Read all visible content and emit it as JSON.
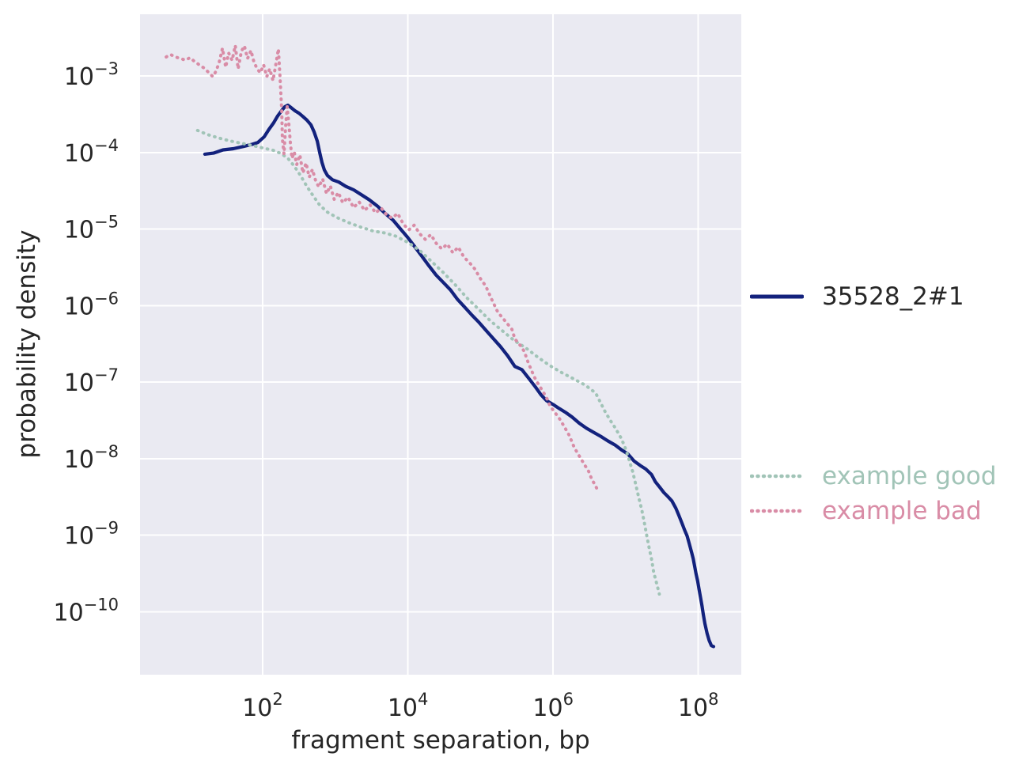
{
  "figure": {
    "background": "#ffffff",
    "plot_background": "#eaeaf2",
    "grid_color": "#ffffff",
    "text_color": "#262626"
  },
  "chart_data": {
    "type": "line",
    "xscale": "log",
    "yscale": "log",
    "xlabel": "fragment separation, bp",
    "ylabel": "probability density",
    "xlim": [
      2.05,
      390000000
    ],
    "ylim": [
      1.5e-11,
      0.0064
    ],
    "grid": true,
    "legend_position": "right of axes",
    "xtick_exponents": [
      2,
      4,
      6,
      8
    ],
    "ytick_exponents": [
      -3,
      -4,
      -5,
      -6,
      -7,
      -8,
      -9,
      -10
    ],
    "series": [
      {
        "name": "35528_2#1",
        "color": "#13227d",
        "label_color": "#262626",
        "line_style": "solid",
        "line_width": 4.2,
        "points": [
          [
            16,
            9.5e-05
          ],
          [
            21,
            9.8e-05
          ],
          [
            28.5,
            0.000108
          ],
          [
            39.5,
            0.000112
          ],
          [
            55,
            0.00012
          ],
          [
            70,
            0.000127
          ],
          [
            86,
            0.000135
          ],
          [
            105,
            0.00016
          ],
          [
            122,
            0.0002
          ],
          [
            142,
            0.000245
          ],
          [
            161,
            0.0003
          ],
          [
            182,
            0.00035
          ],
          [
            202,
            0.000395
          ],
          [
            223,
            0.000415
          ],
          [
            247,
            0.000385
          ],
          [
            280,
            0.00035
          ],
          [
            317,
            0.000325
          ],
          [
            359,
            0.000295
          ],
          [
            407,
            0.000265
          ],
          [
            462,
            0.00023
          ],
          [
            512,
            0.000185
          ],
          [
            567,
            0.00014
          ],
          [
            610,
            0.0001
          ],
          [
            657,
            7.4e-05
          ],
          [
            708,
            5.9e-05
          ],
          [
            781,
            5e-05
          ],
          [
            916,
            4.4e-05
          ],
          [
            1120,
            4.1e-05
          ],
          [
            1400,
            3.6e-05
          ],
          [
            1790,
            3.25e-05
          ],
          [
            2290,
            2.8e-05
          ],
          [
            2950,
            2.4e-05
          ],
          [
            3790,
            2e-05
          ],
          [
            4870,
            1.6e-05
          ],
          [
            6270,
            1.3e-05
          ],
          [
            8070,
            9.8e-06
          ],
          [
            9900,
            7.8e-06
          ],
          [
            12400,
            5.9e-06
          ],
          [
            15600,
            4.4e-06
          ],
          [
            19500,
            3.3e-06
          ],
          [
            24500,
            2.5e-06
          ],
          [
            30700,
            2e-06
          ],
          [
            38600,
            1.6e-06
          ],
          [
            48400,
            1.2e-06
          ],
          [
            60700,
            9.5e-07
          ],
          [
            76200,
            7.5e-07
          ],
          [
            95600,
            6e-07
          ],
          [
            120000,
            4.7e-07
          ],
          [
            150000,
            3.7e-07
          ],
          [
            189000,
            2.9e-07
          ],
          [
            237000,
            2.2e-07
          ],
          [
            297000,
            1.6e-07
          ],
          [
            373000,
            1.45e-07
          ],
          [
            468000,
            1.1e-07
          ],
          [
            572000,
            8.6e-08
          ],
          [
            682000,
            6.8e-08
          ],
          [
            813000,
            5.7e-08
          ],
          [
            995000,
            5.1e-08
          ],
          [
            1220000,
            4.5e-08
          ],
          [
            1490000,
            4e-08
          ],
          [
            1820000,
            3.5e-08
          ],
          [
            2290000,
            2.9e-08
          ],
          [
            2870000,
            2.5e-08
          ],
          [
            3610000,
            2.2e-08
          ],
          [
            4530000,
            1.95e-08
          ],
          [
            5690000,
            1.7e-08
          ],
          [
            7150000,
            1.5e-08
          ],
          [
            8730000,
            1.3e-08
          ],
          [
            10700000,
            1.15e-08
          ],
          [
            13000000,
            9.3e-09
          ],
          [
            15900000,
            8.1e-09
          ],
          [
            18900000,
            7.3e-09
          ],
          [
            22600000,
            6.2e-09
          ],
          [
            25500000,
            5e-09
          ],
          [
            29500000,
            4.2e-09
          ],
          [
            33500000,
            3.6e-09
          ],
          [
            37900000,
            3.2e-09
          ],
          [
            43200000,
            2.8e-09
          ],
          [
            49000000,
            2.25e-09
          ],
          [
            54000000,
            1.8e-09
          ],
          [
            60000000,
            1.4e-09
          ],
          [
            65000000,
            1.15e-09
          ],
          [
            70000000,
            9.8e-10
          ],
          [
            75000000,
            7.7e-10
          ],
          [
            81000000,
            5.9e-10
          ],
          [
            85000000,
            4.9e-10
          ],
          [
            89000000,
            3.9e-10
          ],
          [
            93000000,
            3.1e-10
          ],
          [
            98000000,
            2.5e-10
          ],
          [
            102000000,
            2e-10
          ],
          [
            107000000,
            1.55e-10
          ],
          [
            112000000,
            1.2e-10
          ],
          [
            117000000,
            9.2e-11
          ],
          [
            123000000,
            7e-11
          ],
          [
            132000000,
            5.2e-11
          ],
          [
            141000000,
            4.2e-11
          ],
          [
            151000000,
            3.6e-11
          ],
          [
            162000000,
            3.5e-11
          ]
        ]
      },
      {
        "name": "example good",
        "color": "#a1c4b7",
        "label_color": "#a1c4b7",
        "line_style": "dotted",
        "line_width": 4,
        "points": [
          [
            12.7,
            0.000194
          ],
          [
            17.3,
            0.000172
          ],
          [
            24,
            0.000156
          ],
          [
            35,
            0.000142
          ],
          [
            51,
            0.000132
          ],
          [
            74,
            0.000123
          ],
          [
            103,
            0.000114
          ],
          [
            139,
            0.000107
          ],
          [
            178,
            9.7e-05
          ],
          [
            223,
            8.4e-05
          ],
          [
            273,
            6.6e-05
          ],
          [
            333,
            5e-05
          ],
          [
            407,
            3.6e-05
          ],
          [
            498,
            2.7e-05
          ],
          [
            610,
            2.05e-05
          ],
          [
            781,
            1.66e-05
          ],
          [
            1060,
            1.41e-05
          ],
          [
            1500,
            1.22e-05
          ],
          [
            2240,
            1.06e-05
          ],
          [
            3340,
            9.4e-06
          ],
          [
            4740,
            8.9e-06
          ],
          [
            6760,
            8.1e-06
          ],
          [
            9900,
            6.7e-06
          ],
          [
            14400,
            5.3e-06
          ],
          [
            21000,
            3.8e-06
          ],
          [
            30700,
            2.7e-06
          ],
          [
            44900,
            1.87e-06
          ],
          [
            65500,
            1.25e-06
          ],
          [
            95600,
            8.8e-07
          ],
          [
            137000,
            6.3e-07
          ],
          [
            199000,
            4.7e-07
          ],
          [
            290000,
            3.5e-07
          ],
          [
            420000,
            2.8e-07
          ],
          [
            620000,
            2.1e-07
          ],
          [
            900000,
            1.64e-07
          ],
          [
            1310000,
            1.33e-07
          ],
          [
            1920000,
            1.1e-07
          ],
          [
            2780000,
            9.1e-08
          ],
          [
            3850000,
            7.2e-08
          ],
          [
            5200000,
            4.1e-08
          ],
          [
            6200000,
            3.1e-08
          ],
          [
            7200000,
            2.5e-08
          ],
          [
            8600000,
            1.87e-08
          ],
          [
            9700000,
            1.44e-08
          ],
          [
            10900000,
            1.03e-08
          ],
          [
            12500000,
            6.7e-09
          ],
          [
            13800000,
            4.5e-09
          ],
          [
            15100000,
            3.1e-09
          ],
          [
            16700000,
            2.1e-09
          ],
          [
            18100000,
            1.43e-09
          ],
          [
            19400000,
            1e-09
          ],
          [
            20900000,
            7e-10
          ],
          [
            22600000,
            4.9e-10
          ],
          [
            24200000,
            3.3e-10
          ],
          [
            26800000,
            2.3e-10
          ],
          [
            29000000,
            1.7e-10
          ]
        ]
      },
      {
        "name": "example bad",
        "color": "#d98ca6",
        "label_color": "#d98ca6",
        "line_style": "dotted",
        "line_width": 4,
        "points": [
          [
            4.7,
            0.00177
          ],
          [
            5.4,
            0.0019
          ],
          [
            6.3,
            0.00177
          ],
          [
            7.4,
            0.00169
          ],
          [
            8.6,
            0.00161
          ],
          [
            10,
            0.00173
          ],
          [
            11.6,
            0.00154
          ],
          [
            13.4,
            0.0014
          ],
          [
            15.6,
            0.00127
          ],
          [
            18.2,
            0.0011
          ],
          [
            20.6,
            0.00098
          ],
          [
            22.8,
            0.00115
          ],
          [
            25.2,
            0.0015
          ],
          [
            28,
            0.0023
          ],
          [
            31,
            0.0013
          ],
          [
            34,
            0.002
          ],
          [
            38,
            0.0016
          ],
          [
            42,
            0.0025
          ],
          [
            46,
            0.00124
          ],
          [
            51,
            0.00209
          ],
          [
            56,
            0.00247
          ],
          [
            62,
            0.00169
          ],
          [
            69,
            0.00215
          ],
          [
            76,
            0.00152
          ],
          [
            84,
            0.00124
          ],
          [
            93,
            0.0011
          ],
          [
            103,
            0.0014
          ],
          [
            114,
            0.00098
          ],
          [
            125,
            0.00124
          ],
          [
            139,
            0.00087
          ],
          [
            153,
            0.00146
          ],
          [
            165,
            0.00225
          ],
          [
            174,
            0.00091
          ],
          [
            183,
            0.00035
          ],
          [
            187,
            0.000152
          ],
          [
            197,
            9.5e-05
          ],
          [
            207,
            0.000218
          ],
          [
            218,
            0.000395
          ],
          [
            229,
            0.000245
          ],
          [
            241,
            0.000135
          ],
          [
            253,
            8.4e-05
          ],
          [
            273,
            0.000101
          ],
          [
            294,
            6.9e-05
          ],
          [
            325,
            9.3e-05
          ],
          [
            359,
            5.4e-05
          ],
          [
            397,
            7.3e-05
          ],
          [
            438,
            4.75e-05
          ],
          [
            485,
            6e-05
          ],
          [
            536,
            4.3e-05
          ],
          [
            593,
            3.55e-05
          ],
          [
            671,
            4.5e-05
          ],
          [
            758,
            2.9e-05
          ],
          [
            857,
            3.65e-05
          ],
          [
            969,
            2.43e-05
          ],
          [
            1100,
            3e-05
          ],
          [
            1270,
            2.2e-05
          ],
          [
            1500,
            2.6e-05
          ],
          [
            1790,
            1.9e-05
          ],
          [
            2130,
            2.26e-05
          ],
          [
            2540,
            1.74e-05
          ],
          [
            3020,
            2.07e-05
          ],
          [
            3600,
            1.62e-05
          ],
          [
            4290,
            1.88e-05
          ],
          [
            5110,
            1.52e-05
          ],
          [
            6080,
            1.39e-05
          ],
          [
            7240,
            1.6e-05
          ],
          [
            8620,
            1.17e-05
          ],
          [
            10300,
            9.7e-06
          ],
          [
            12200,
            1.12e-05
          ],
          [
            14600,
            8.65e-06
          ],
          [
            17400,
            7.3e-06
          ],
          [
            20700,
            8.45e-06
          ],
          [
            24600,
            6.5e-06
          ],
          [
            29300,
            5.5e-06
          ],
          [
            34900,
            6.35e-06
          ],
          [
            41600,
            4.9e-06
          ],
          [
            49500,
            5.8e-06
          ],
          [
            59000,
            4.3e-06
          ],
          [
            70200,
            3.65e-06
          ],
          [
            83600,
            3e-06
          ],
          [
            99500,
            2.25e-06
          ],
          [
            118000,
            1.8e-06
          ],
          [
            141000,
            1.23e-06
          ],
          [
            173000,
            8.2e-07
          ],
          [
            221000,
            6.2e-07
          ],
          [
            270000,
            4.9e-07
          ],
          [
            298000,
            3.65e-07
          ],
          [
            354000,
            3e-07
          ],
          [
            402000,
            2.5e-07
          ],
          [
            453000,
            1.8e-07
          ],
          [
            500000,
            1.45e-07
          ],
          [
            550000,
            1.17e-07
          ],
          [
            604000,
            9.9e-08
          ],
          [
            666000,
            8.6e-08
          ],
          [
            751000,
            7.1e-08
          ],
          [
            828000,
            6e-08
          ],
          [
            907000,
            4.85e-08
          ],
          [
            1060000,
            4e-08
          ],
          [
            1230000,
            3.3e-08
          ],
          [
            1430000,
            2.6e-08
          ],
          [
            1670000,
            2e-08
          ],
          [
            1950000,
            1.4e-08
          ],
          [
            2270000,
            1.1e-08
          ],
          [
            2650000,
            8.6e-09
          ],
          [
            3090000,
            6.8e-09
          ],
          [
            3410000,
            5.35e-09
          ],
          [
            3770000,
            4.55e-09
          ],
          [
            4060000,
            3.95e-09
          ]
        ]
      }
    ]
  },
  "legend": {
    "main": [
      {
        "series_index": 0,
        "label": "35528_2#1"
      }
    ],
    "examples": [
      {
        "series_index": 1,
        "label": "example good"
      },
      {
        "series_index": 2,
        "label": "example bad"
      }
    ]
  }
}
